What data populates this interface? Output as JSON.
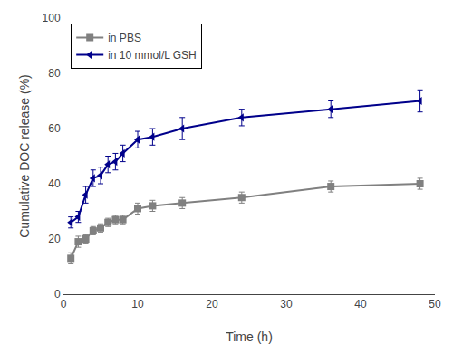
{
  "chart_data": {
    "type": "line",
    "xlabel": "Time (h)",
    "ylabel": "Cumulative DOC release (%)",
    "x": [
      1,
      2,
      3,
      4,
      5,
      6,
      7,
      8,
      10,
      12,
      16,
      24,
      36,
      48
    ],
    "series": [
      {
        "name": "in PBS",
        "color": "#808080",
        "marker": "square",
        "line_style": "solid",
        "values": [
          13,
          19,
          20,
          23,
          24,
          26,
          27,
          27,
          31,
          32,
          33,
          35,
          39,
          40
        ],
        "yerr": [
          2,
          2,
          1.5,
          1.5,
          1.5,
          1.5,
          1.5,
          1.5,
          2,
          2,
          2,
          2,
          2,
          2
        ]
      },
      {
        "name": "in 10 mmol/L GSH",
        "color": "#00008B",
        "marker": "triangle-left",
        "line_style": "solid",
        "values": [
          26,
          28,
          36,
          42,
          43,
          47,
          48,
          51,
          56,
          57,
          60,
          64,
          67,
          70
        ],
        "yerr": [
          2,
          2,
          3,
          3,
          3,
          3,
          3,
          3,
          3,
          3,
          4,
          3,
          3,
          4
        ]
      }
    ],
    "xlim": [
      0,
      50
    ],
    "ylim": [
      0,
      100
    ],
    "xticks": [
      0,
      10,
      20,
      30,
      40,
      50
    ],
    "yticks": [
      0,
      20,
      40,
      60,
      80,
      100
    ],
    "grid": false,
    "legend": "upper left"
  }
}
